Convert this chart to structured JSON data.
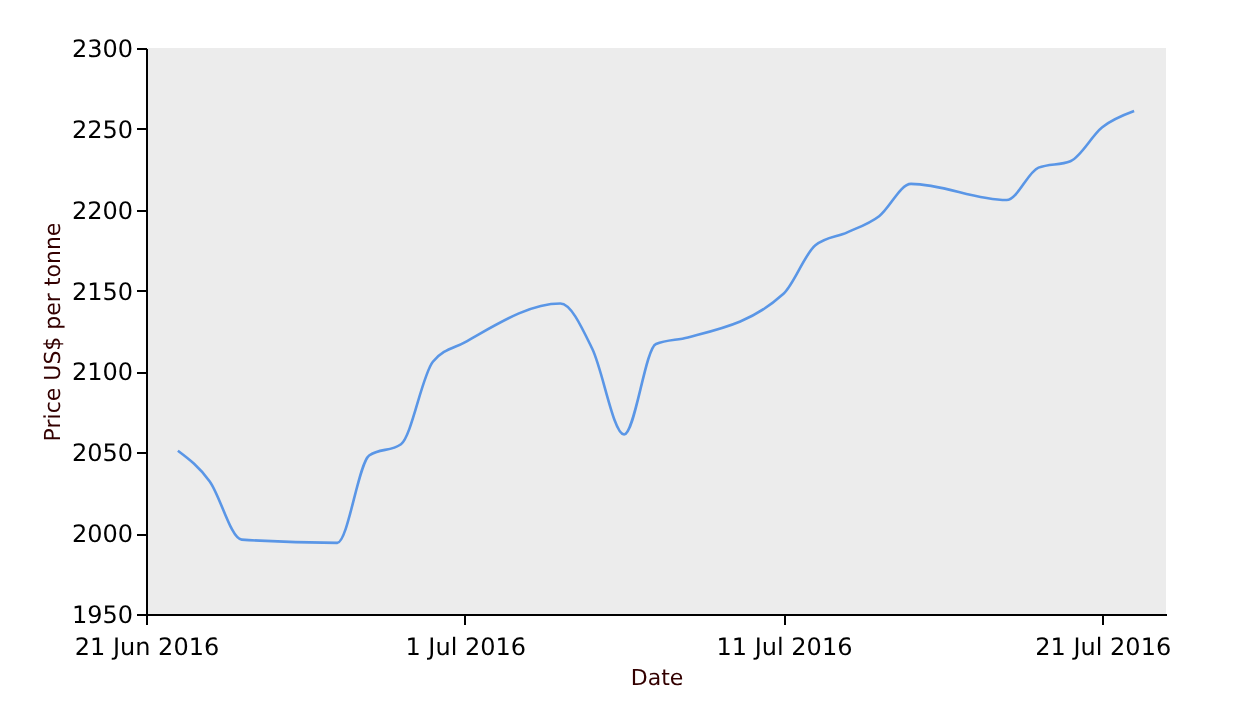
{
  "chart_data": {
    "type": "line",
    "xlabel": "Date",
    "ylabel": "Price US$ per tonne",
    "x": [
      "2016-06-22",
      "2016-06-23",
      "2016-06-24",
      "2016-06-27",
      "2016-06-28",
      "2016-06-29",
      "2016-06-30",
      "2016-07-01",
      "2016-07-04",
      "2016-07-05",
      "2016-07-06",
      "2016-07-07",
      "2016-07-08",
      "2016-07-11",
      "2016-07-12",
      "2016-07-13",
      "2016-07-14",
      "2016-07-15",
      "2016-07-18",
      "2016-07-19",
      "2016-07-20",
      "2016-07-21",
      "2016-07-22"
    ],
    "series": [
      {
        "color": "#5a96e6",
        "values": [
          2051,
          2032,
          1996,
          1994,
          2048,
          2055,
          2106,
          2118,
          2142,
          2114,
          2061,
          2117,
          2121,
          2148,
          2178,
          2186,
          2196,
          2216,
          2206,
          2226,
          2230,
          2251,
          2261
        ]
      }
    ],
    "xlim": [
      "2016-06-21",
      "2016-07-23"
    ],
    "xticks": [
      {
        "value": "2016-06-21",
        "label": "21 Jun 2016"
      },
      {
        "value": "2016-07-01",
        "label": "1 Jul 2016"
      },
      {
        "value": "2016-07-11",
        "label": "11 Jul 2016"
      },
      {
        "value": "2016-07-21",
        "label": "21 Jul 2016"
      }
    ],
    "ylim": [
      1950,
      2300
    ],
    "yticks": [
      1950,
      2000,
      2050,
      2100,
      2150,
      2200,
      2250,
      2300
    ],
    "grid": false,
    "legend": false,
    "marker": "none",
    "line_style": "solid"
  }
}
